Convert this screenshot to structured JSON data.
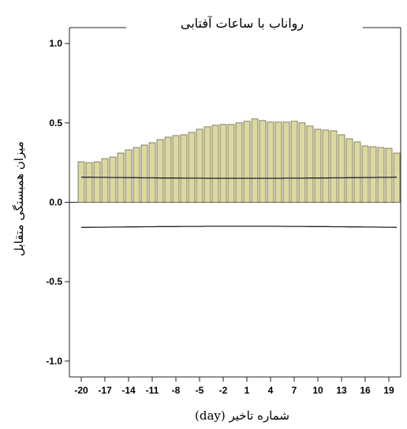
{
  "chart_data": {
    "type": "bar",
    "title": "رواناب با ساعات آفتابی",
    "xlabel": "شماره تاخیر (day)",
    "ylabel": "میزان همبستگی متقابل",
    "x": [
      -20,
      -19,
      -18,
      -17,
      -16,
      -15,
      -14,
      -13,
      -12,
      -11,
      -10,
      -9,
      -8,
      -7,
      -6,
      -5,
      -4,
      -3,
      -2,
      -1,
      0,
      1,
      2,
      3,
      4,
      5,
      6,
      7,
      8,
      9,
      10,
      11,
      12,
      13,
      14,
      15,
      16,
      17,
      18,
      19,
      20
    ],
    "values": [
      0.255,
      0.25,
      0.255,
      0.275,
      0.285,
      0.31,
      0.33,
      0.345,
      0.36,
      0.375,
      0.395,
      0.41,
      0.42,
      0.425,
      0.44,
      0.46,
      0.475,
      0.485,
      0.49,
      0.49,
      0.5,
      0.51,
      0.525,
      0.515,
      0.505,
      0.505,
      0.505,
      0.51,
      0.5,
      0.48,
      0.46,
      0.455,
      0.45,
      0.425,
      0.4,
      0.38,
      0.355,
      0.35,
      0.345,
      0.34,
      0.31
    ],
    "upper_confidence_limit": [
      0.158,
      0.158,
      0.157,
      0.157,
      0.156,
      0.156,
      0.155,
      0.155,
      0.154,
      0.154,
      0.153,
      0.153,
      0.153,
      0.152,
      0.152,
      0.152,
      0.151,
      0.151,
      0.151,
      0.151,
      0.151,
      0.151,
      0.151,
      0.151,
      0.151,
      0.151,
      0.152,
      0.152,
      0.152,
      0.153,
      0.153,
      0.153,
      0.154,
      0.154,
      0.155,
      0.155,
      0.156,
      0.156,
      0.157,
      0.157,
      0.158
    ],
    "lower_confidence_limit": [
      -0.158,
      -0.158,
      -0.157,
      -0.157,
      -0.156,
      -0.156,
      -0.155,
      -0.155,
      -0.154,
      -0.154,
      -0.153,
      -0.153,
      -0.153,
      -0.152,
      -0.152,
      -0.152,
      -0.151,
      -0.151,
      -0.151,
      -0.151,
      -0.151,
      -0.151,
      -0.151,
      -0.151,
      -0.151,
      -0.151,
      -0.152,
      -0.152,
      -0.152,
      -0.153,
      -0.153,
      -0.153,
      -0.154,
      -0.154,
      -0.155,
      -0.155,
      -0.156,
      -0.156,
      -0.157,
      -0.157,
      -0.158
    ],
    "ylim": [
      -1.1,
      1.1
    ],
    "xlim": [
      -21.5,
      20.5
    ],
    "y_ticks": [
      1.0,
      0.5,
      0.0,
      -0.5,
      -1.0
    ],
    "y_tick_labels": [
      "1.0",
      "0.5",
      "0.0",
      "-0.5",
      "-1.0"
    ],
    "x_ticks": [
      -20,
      -17,
      -14,
      -11,
      -8,
      -5,
      -2,
      1,
      4,
      7,
      10,
      13,
      16,
      19
    ],
    "x_tick_labels": [
      "-20",
      "-17",
      "-14",
      "-11",
      "-8",
      "-5",
      "-2",
      "1",
      "4",
      "7",
      "10",
      "13",
      "16",
      "19"
    ],
    "grid": false,
    "bar_color": "#dcd8a0",
    "bar_edge_color": "#6b6a4a",
    "line_color": "#222222"
  }
}
